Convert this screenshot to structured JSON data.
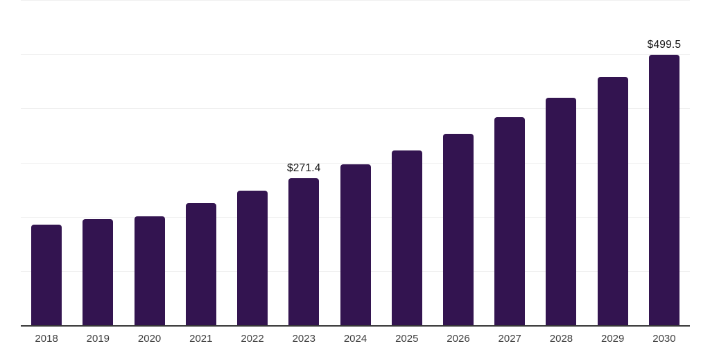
{
  "chart_data": {
    "type": "bar",
    "title": "",
    "xlabel": "",
    "ylabel": "",
    "categories": [
      "2018",
      "2019",
      "2020",
      "2021",
      "2022",
      "2023",
      "2024",
      "2025",
      "2026",
      "2027",
      "2028",
      "2029",
      "2030"
    ],
    "values": [
      185,
      196,
      201,
      225,
      248,
      271.4,
      297,
      323,
      353,
      384,
      419,
      458,
      499.5
    ],
    "data_labels": {
      "2023": "$271.4",
      "2030": "$499.5"
    },
    "ylim": [
      0,
      600
    ],
    "gridline_step": 100,
    "grid": "horizontal-only",
    "legend": "none",
    "colors": {
      "bar": "#331450",
      "gridline": "#f0f0f0",
      "axis_line": "#383838",
      "tick_label": "#3f3f3f",
      "data_label": "#121212",
      "background": "#ffffff"
    }
  }
}
